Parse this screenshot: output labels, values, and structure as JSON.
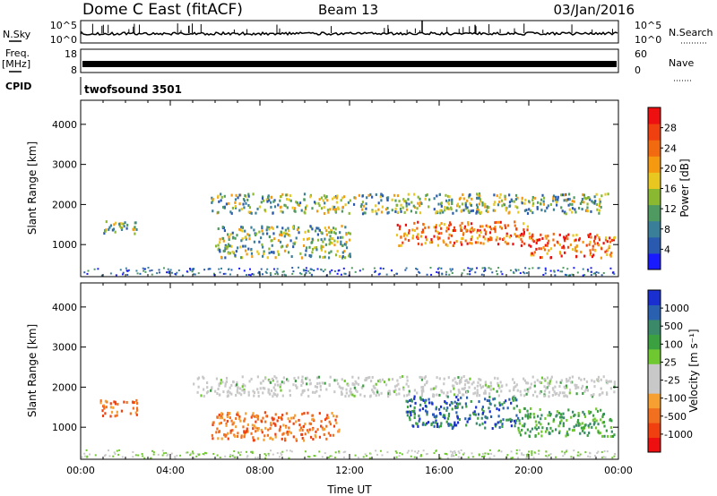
{
  "header": {
    "title": "Dome C East (fitACF)",
    "beam": "Beam 13",
    "date": "03/Jan/2016"
  },
  "top_panels": {
    "nsky_label": "N.Sky",
    "nsky_ticks": [
      "10^5",
      "10^0"
    ],
    "nsearch_label": "N.Search",
    "nsearch_ticks": [
      "10^5",
      "10^0"
    ],
    "freq_label": "Freq.",
    "freq_unit": "[MHz]",
    "freq_ticks": [
      "18",
      "8"
    ],
    "nave_label": "Nave",
    "nave_ticks": [
      "60",
      "0"
    ],
    "cpid_label": "CPID",
    "cpid_value": "twofsound 3501"
  },
  "chart_data": [
    {
      "type": "heatmap",
      "name": "power-panel",
      "ylabel": "Slant Range [km]",
      "xlabel": "",
      "y_ticks": [
        "1000",
        "2000",
        "3000",
        "4000"
      ],
      "ylim": [
        200,
        4600
      ],
      "xlim_hours": [
        0,
        24
      ],
      "colorbar": {
        "label": "Power [dB]",
        "ticks": [
          "4",
          "8",
          "12",
          "16",
          "20",
          "24",
          "28"
        ],
        "colors": [
          "#1a1aff",
          "#2a5ab0",
          "#3a7f9a",
          "#4f9a60",
          "#8ab830",
          "#e8c820",
          "#f59a10",
          "#f26a10",
          "#f04010",
          "#ee1010"
        ]
      },
      "bands": [
        {
          "t0": 5.8,
          "t1": 23.5,
          "r0": 1800,
          "r1": 2300,
          "tone": "mid"
        },
        {
          "t0": 14.0,
          "t1": 20.0,
          "r0": 1000,
          "r1": 1600,
          "tone": "high"
        },
        {
          "t0": 6.0,
          "t1": 12.0,
          "r0": 700,
          "r1": 1500,
          "tone": "mid"
        },
        {
          "t0": 1.0,
          "t1": 2.5,
          "r0": 1300,
          "r1": 1700,
          "tone": "mid"
        },
        {
          "t0": 20.0,
          "t1": 23.8,
          "r0": 700,
          "r1": 1300,
          "tone": "high"
        }
      ]
    },
    {
      "type": "heatmap",
      "name": "velocity-panel",
      "ylabel": "Slant Range [km]",
      "xlabel": "Time UT",
      "y_ticks": [
        "1000",
        "2000",
        "3000",
        "4000"
      ],
      "x_ticks": [
        "00:00",
        "04:00",
        "08:00",
        "12:00",
        "16:00",
        "20:00",
        "00:00"
      ],
      "ylim": [
        200,
        4600
      ],
      "xlim_hours": [
        0,
        24
      ],
      "colorbar": {
        "label": "Velocity [m s⁻¹]",
        "ticks": [
          "1000",
          "500",
          "100",
          "25",
          "-25",
          "-100",
          "-500",
          "-1000"
        ],
        "colors": [
          "#1a2fd0",
          "#2a60b0",
          "#3a8a6a",
          "#3aa040",
          "#70c830",
          "#c8c8c8",
          "#c8c8c8",
          "#f5a030",
          "#f07020",
          "#f04010",
          "#ee1010"
        ]
      },
      "bands": [
        {
          "t0": 5.0,
          "t1": 23.8,
          "r0": 1800,
          "r1": 2300,
          "tone": "grey"
        },
        {
          "t0": 14.5,
          "t1": 19.5,
          "r0": 1000,
          "r1": 1800,
          "tone": "blue"
        },
        {
          "t0": 5.8,
          "t1": 11.5,
          "r0": 700,
          "r1": 1400,
          "tone": "orange"
        },
        {
          "t0": 0.8,
          "t1": 2.5,
          "r0": 1300,
          "r1": 1700,
          "tone": "orange"
        },
        {
          "t0": 19.5,
          "t1": 23.8,
          "r0": 800,
          "r1": 1500,
          "tone": "green"
        }
      ]
    }
  ]
}
